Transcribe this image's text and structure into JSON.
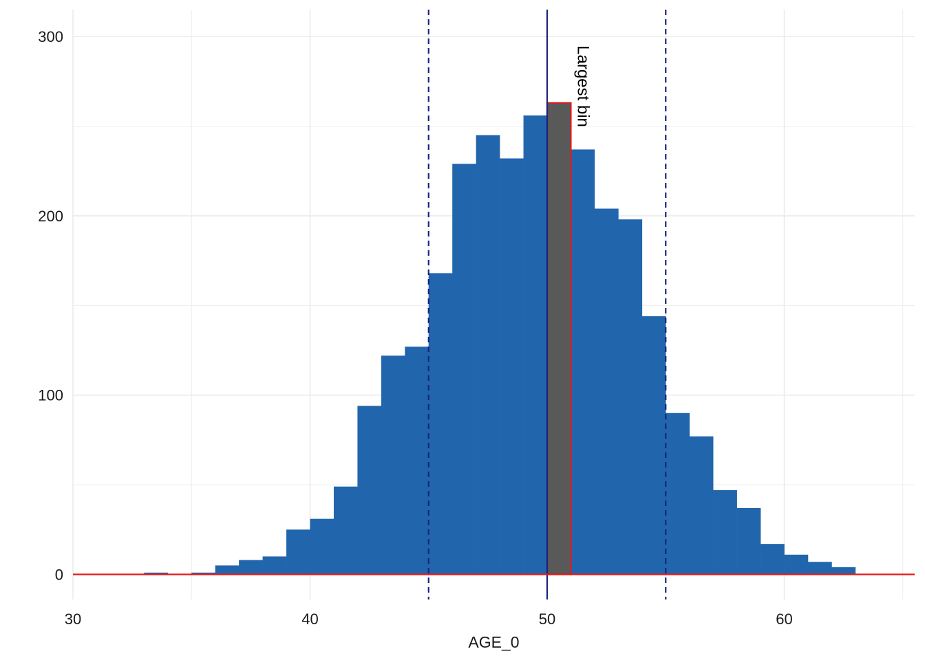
{
  "chart_data": {
    "type": "bar",
    "title": "",
    "xlabel": "AGE_0",
    "ylabel": "",
    "xlim": [
      30,
      65.5
    ],
    "ylim": [
      -14,
      315
    ],
    "grid": true,
    "legend": "none",
    "x_ticks": [
      30,
      40,
      50,
      60
    ],
    "y_ticks": [
      0,
      100,
      200,
      300
    ],
    "bin_width": 1,
    "bins": [
      {
        "x0": 33,
        "count": 1
      },
      {
        "x0": 34,
        "count": 0
      },
      {
        "x0": 35,
        "count": 1
      },
      {
        "x0": 36,
        "count": 5
      },
      {
        "x0": 37,
        "count": 8
      },
      {
        "x0": 38,
        "count": 10
      },
      {
        "x0": 39,
        "count": 25
      },
      {
        "x0": 40,
        "count": 31
      },
      {
        "x0": 41,
        "count": 49
      },
      {
        "x0": 42,
        "count": 94
      },
      {
        "x0": 43,
        "count": 122
      },
      {
        "x0": 44,
        "count": 127
      },
      {
        "x0": 45,
        "count": 168
      },
      {
        "x0": 46,
        "count": 229
      },
      {
        "x0": 47,
        "count": 245
      },
      {
        "x0": 48,
        "count": 232
      },
      {
        "x0": 49,
        "count": 256
      },
      {
        "x0": 50,
        "count": 263
      },
      {
        "x0": 51,
        "count": 237
      },
      {
        "x0": 52,
        "count": 204
      },
      {
        "x0": 53,
        "count": 198
      },
      {
        "x0": 54,
        "count": 144
      },
      {
        "x0": 55,
        "count": 90
      },
      {
        "x0": 56,
        "count": 77
      },
      {
        "x0": 57,
        "count": 47
      },
      {
        "x0": 58,
        "count": 37
      },
      {
        "x0": 59,
        "count": 17
      },
      {
        "x0": 60,
        "count": 11
      },
      {
        "x0": 61,
        "count": 7
      },
      {
        "x0": 62,
        "count": 4
      }
    ],
    "highlight_bin": {
      "x0": 50,
      "count": 263,
      "label": "Largest bin"
    },
    "reference_lines": [
      {
        "x": 45,
        "style": "dashed"
      },
      {
        "x": 50,
        "style": "solid"
      },
      {
        "x": 55,
        "style": "dashed"
      }
    ],
    "baseline": {
      "y": 0
    },
    "colors": {
      "bar_fill": "#2166ac",
      "highlight_fill": "#595959",
      "highlight_outline": "#e31a1c",
      "reference_line": "#1a237e",
      "baseline": "#e31a1c",
      "grid": "#ebebeb"
    }
  }
}
